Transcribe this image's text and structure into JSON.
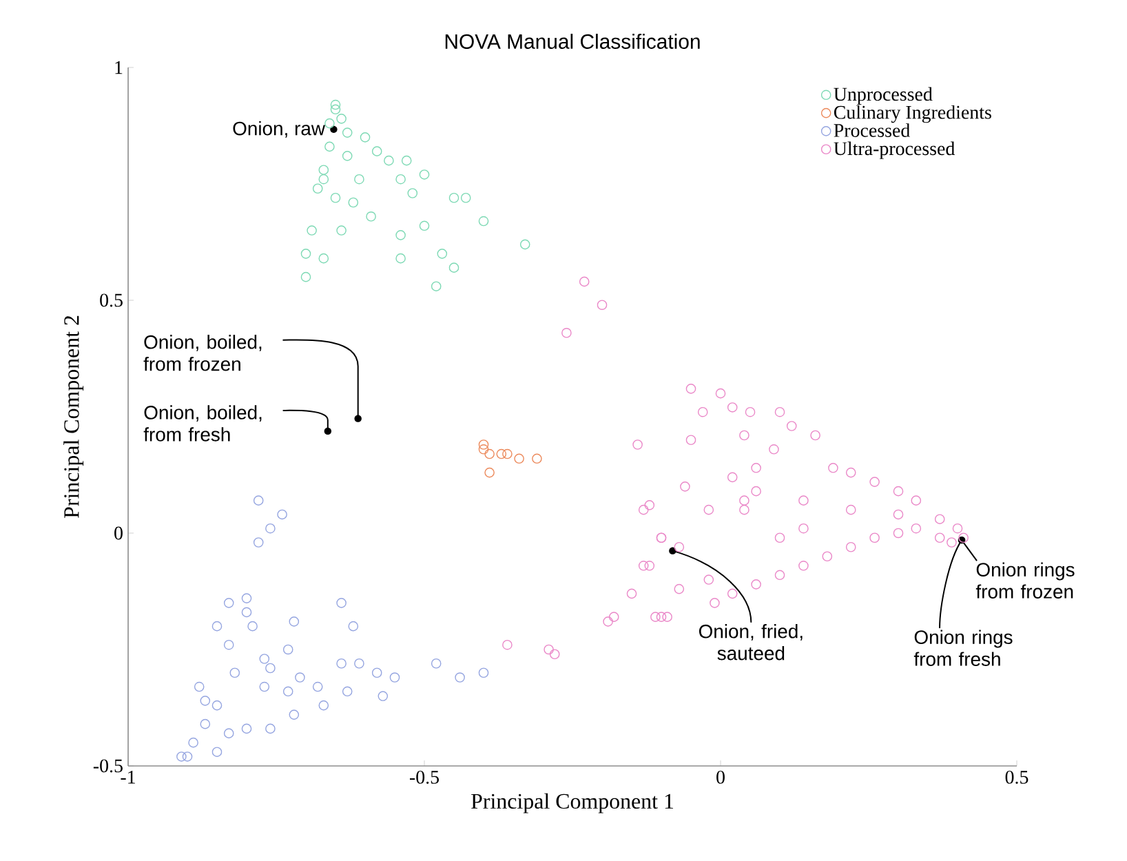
{
  "chart_data": {
    "type": "scatter",
    "title": "NOVA Manual Classification",
    "xlabel": "Principal Component 1",
    "ylabel": "Principal Component 2",
    "xlim": [
      -1,
      0.5
    ],
    "ylim": [
      -0.5,
      1
    ],
    "xticks": [
      -1,
      -0.5,
      0,
      0.5
    ],
    "yticks": [
      -0.5,
      0,
      0.5,
      1
    ],
    "marker": "circle",
    "legend": "top right",
    "series": [
      {
        "name": "Unprocessed",
        "color": "#7dd9b4",
        "x": [
          -0.65,
          -0.64,
          -0.66,
          -0.63,
          -0.6,
          -0.58,
          -0.56,
          -0.53,
          -0.5,
          -0.54,
          -0.61,
          -0.67,
          -0.68,
          -0.65,
          -0.62,
          -0.59,
          -0.52,
          -0.45,
          -0.43,
          -0.4,
          -0.5,
          -0.54,
          -0.47,
          -0.45,
          -0.54,
          -0.48,
          -0.33,
          -0.67,
          -0.7,
          -0.69,
          -0.7,
          -0.64,
          -0.67,
          -0.65,
          -0.66,
          -0.63
        ],
        "values": [
          0.92,
          0.89,
          0.83,
          0.81,
          0.85,
          0.82,
          0.8,
          0.8,
          0.77,
          0.76,
          0.76,
          0.78,
          0.74,
          0.72,
          0.71,
          0.68,
          0.73,
          0.72,
          0.72,
          0.67,
          0.66,
          0.64,
          0.6,
          0.57,
          0.59,
          0.53,
          0.62,
          0.59,
          0.6,
          0.65,
          0.55,
          0.65,
          0.76,
          0.91,
          0.88,
          0.86
        ]
      },
      {
        "name": "Culinary Ingredients",
        "color": "#ec8a5c",
        "x": [
          -0.4,
          -0.39,
          -0.37,
          -0.36,
          -0.34,
          -0.31,
          -0.39,
          -0.4
        ],
        "values": [
          0.18,
          0.17,
          0.17,
          0.17,
          0.16,
          0.16,
          0.13,
          0.19
        ]
      },
      {
        "name": "Processed",
        "color": "#95a5e0",
        "x": [
          -0.78,
          -0.74,
          -0.76,
          -0.78,
          -0.8,
          -0.83,
          -0.8,
          -0.85,
          -0.79,
          -0.72,
          -0.64,
          -0.62,
          -0.83,
          -0.77,
          -0.73,
          -0.76,
          -0.64,
          -0.61,
          -0.58,
          -0.55,
          -0.71,
          -0.77,
          -0.73,
          -0.68,
          -0.63,
          -0.57,
          -0.67,
          -0.72,
          -0.76,
          -0.8,
          -0.91,
          -0.89,
          -0.87,
          -0.85,
          -0.87,
          -0.83,
          -0.88,
          -0.82,
          -0.85,
          -0.9,
          -0.48,
          -0.44,
          -0.4
        ],
        "values": [
          0.07,
          0.04,
          0.01,
          -0.02,
          -0.14,
          -0.15,
          -0.17,
          -0.2,
          -0.2,
          -0.19,
          -0.15,
          -0.2,
          -0.24,
          -0.27,
          -0.25,
          -0.29,
          -0.28,
          -0.28,
          -0.3,
          -0.31,
          -0.31,
          -0.33,
          -0.34,
          -0.33,
          -0.34,
          -0.35,
          -0.37,
          -0.39,
          -0.42,
          -0.42,
          -0.48,
          -0.45,
          -0.41,
          -0.37,
          -0.36,
          -0.43,
          -0.33,
          -0.3,
          -0.47,
          -0.48,
          -0.28,
          -0.31,
          -0.3
        ]
      },
      {
        "name": "Ultra-processed",
        "color": "#ea88c8",
        "x": [
          -0.36,
          -0.29,
          -0.28,
          -0.19,
          -0.18,
          -0.15,
          -0.13,
          -0.1,
          -0.13,
          -0.11,
          -0.09,
          -0.23,
          -0.2,
          -0.26,
          -0.14,
          -0.05,
          0.0,
          0.02,
          -0.03,
          -0.05,
          0.05,
          0.1,
          0.12,
          0.16,
          0.04,
          0.06,
          0.02,
          0.09,
          0.19,
          0.22,
          0.26,
          0.3,
          0.33,
          0.37,
          0.41,
          0.37,
          0.33,
          0.3,
          0.26,
          0.22,
          0.18,
          0.14,
          0.1,
          0.06,
          0.02,
          -0.01,
          0.3,
          0.22,
          0.14,
          0.06,
          0.14,
          0.1,
          0.04,
          0.04,
          -0.06,
          -0.12,
          -0.02,
          -0.1,
          -0.07,
          -0.12,
          -0.07,
          -0.1,
          -0.02,
          0.39,
          0.4
        ],
        "values": [
          -0.24,
          -0.25,
          -0.26,
          -0.19,
          -0.18,
          -0.13,
          -0.07,
          -0.01,
          0.05,
          -0.18,
          -0.18,
          0.54,
          0.49,
          0.43,
          0.19,
          0.31,
          0.3,
          0.27,
          0.26,
          0.2,
          0.26,
          0.26,
          0.23,
          0.21,
          0.21,
          0.14,
          0.12,
          0.18,
          0.14,
          0.13,
          0.11,
          0.09,
          0.07,
          0.03,
          -0.01,
          -0.01,
          0.01,
          0.0,
          -0.01,
          -0.03,
          -0.05,
          -0.07,
          -0.09,
          -0.11,
          -0.13,
          -0.15,
          0.04,
          0.05,
          0.07,
          0.09,
          0.01,
          -0.01,
          0.05,
          0.07,
          0.1,
          0.06,
          0.05,
          -0.01,
          -0.03,
          -0.07,
          -0.12,
          -0.18,
          -0.1,
          -0.02,
          0.01
        ]
      }
    ],
    "annotations": [
      {
        "text": "Onion, raw",
        "x": -0.653,
        "y": 0.867
      },
      {
        "text": "Onion, boiled, from frozen",
        "x": -0.612,
        "y": 0.246
      },
      {
        "text": "Onion, boiled, from fresh",
        "x": -0.663,
        "y": 0.219
      },
      {
        "text": "Onion, fried, sauteed",
        "x": -0.081,
        "y": -0.038
      },
      {
        "text": "Onion rings from frozen",
        "x": 0.407,
        "y": -0.015
      },
      {
        "text": "Onion rings from fresh",
        "x": 0.407,
        "y": -0.015
      }
    ]
  }
}
